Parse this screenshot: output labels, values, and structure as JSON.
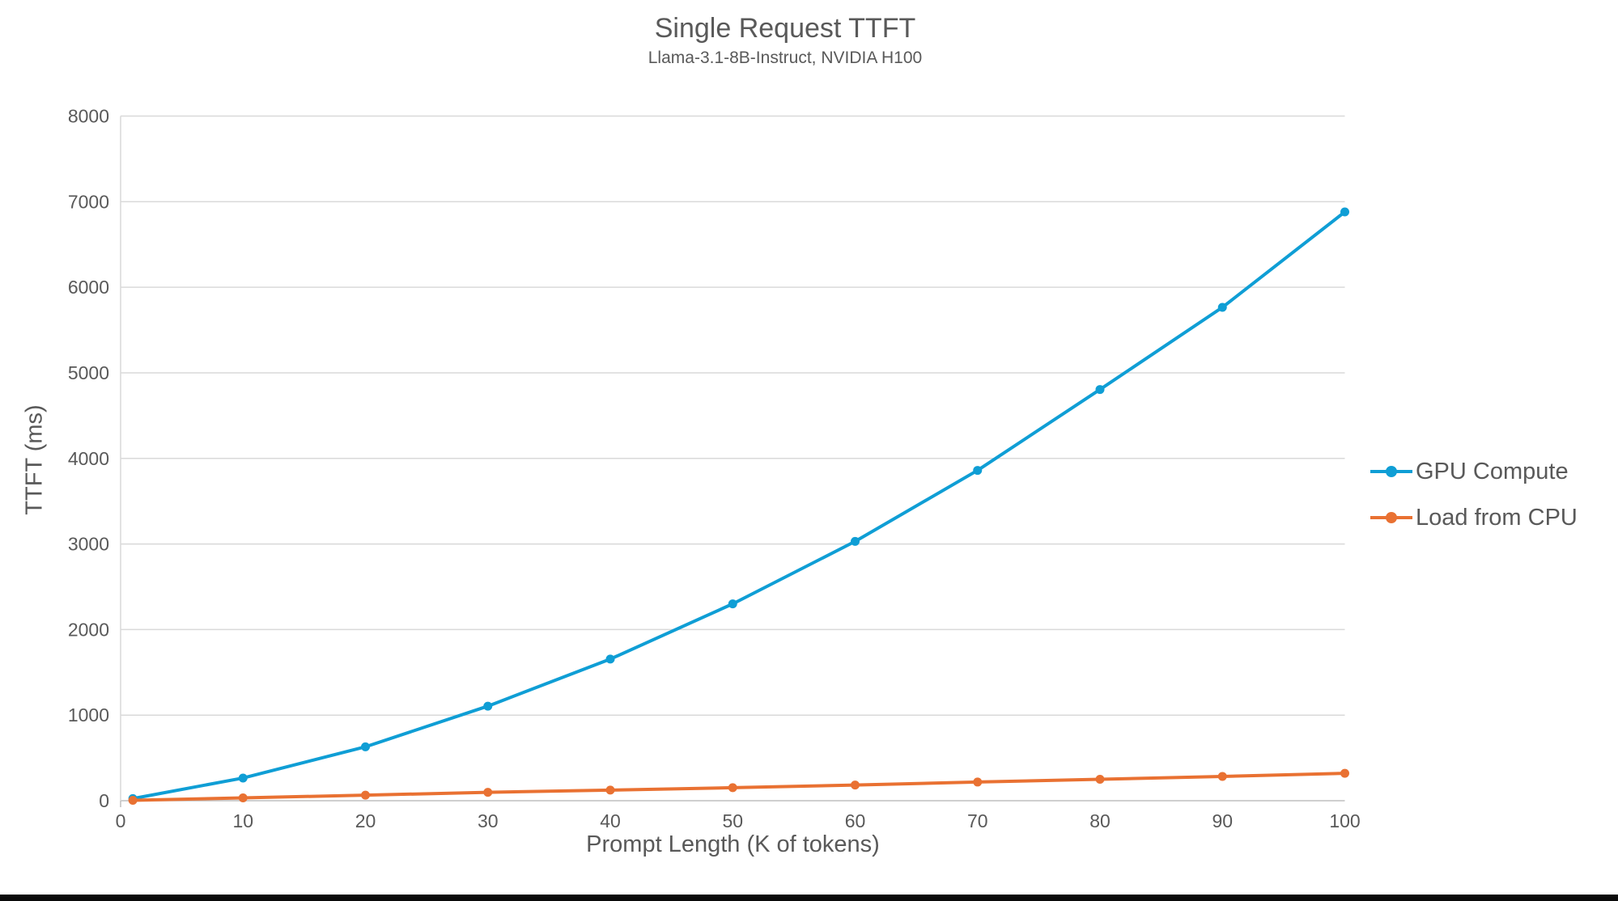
{
  "chart": {
    "title": "Single Request TTFT",
    "subtitle": "Llama-3.1-8B-Instruct, NVIDIA H100"
  },
  "chart_data": {
    "type": "line",
    "title": "Single Request TTFT",
    "subtitle": "Llama-3.1-8B-Instruct, NVIDIA H100",
    "xlabel": "Prompt Length (K of tokens)",
    "ylabel": "TTFT (ms)",
    "x": [
      1,
      10,
      20,
      30,
      40,
      50,
      60,
      70,
      80,
      90,
      100
    ],
    "series": [
      {
        "name": "GPU Compute",
        "color": "#0F9ED5",
        "values": [
          25,
          265,
          630,
          1105,
          1655,
          2300,
          3030,
          3860,
          4805,
          5765,
          6880
        ]
      },
      {
        "name": "Load from CPU",
        "color": "#E97132",
        "values": [
          5,
          33,
          65,
          98,
          124,
          152,
          183,
          218,
          250,
          284,
          320
        ]
      }
    ],
    "x_axis": {
      "min": 0,
      "max": 100,
      "ticks": [
        0,
        10,
        20,
        30,
        40,
        50,
        60,
        70,
        80,
        90,
        100
      ]
    },
    "y_axis": {
      "min": 0,
      "max": 8000,
      "ticks": [
        0,
        1000,
        2000,
        3000,
        4000,
        5000,
        6000,
        7000,
        8000
      ]
    },
    "grid": "horizontal",
    "legend_position": "right",
    "text_color": "#595959",
    "gridline_color": "#D9D9D9",
    "axis_line_color": "#BFBFBF"
  },
  "legend": {
    "items": [
      {
        "label": "GPU Compute"
      },
      {
        "label": "Load from CPU"
      }
    ]
  }
}
